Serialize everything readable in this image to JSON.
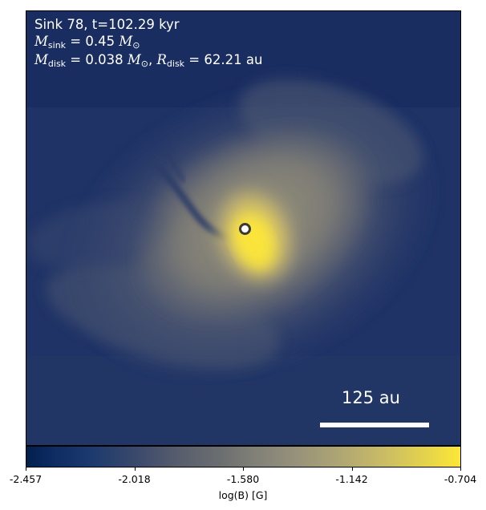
{
  "annotation": {
    "line1": "Sink 78, t=102.29 kyr",
    "m_sink_sym": "M",
    "m_sink_sub": "sink",
    "m_sink_eq": " = 0.45 ",
    "m_sink_unit": "M",
    "m_sink_unit_sub": "⊙",
    "m_disk_sym": "M",
    "m_disk_sub": "disk",
    "m_disk_eq": " = 0.038 ",
    "m_disk_unit": "M",
    "m_disk_unit_sub": "⊙",
    "sep": ", ",
    "r_disk_sym": "R",
    "r_disk_sub": "disk",
    "r_disk_eq": " = 62.21 au"
  },
  "scale_bar": {
    "label": "125 au"
  },
  "colorbar": {
    "label": "log(B) [G]",
    "ticks": [
      "-2.457",
      "-2.018",
      "-1.580",
      "-1.142",
      "-0.704"
    ],
    "colormap": "cividis",
    "min": -2.457,
    "max": -0.704
  },
  "colors": {
    "background_dark": "#1e2f63",
    "core_bright": "#fde737",
    "mid_gray": "#7f7f78",
    "text": "#ffffff"
  }
}
